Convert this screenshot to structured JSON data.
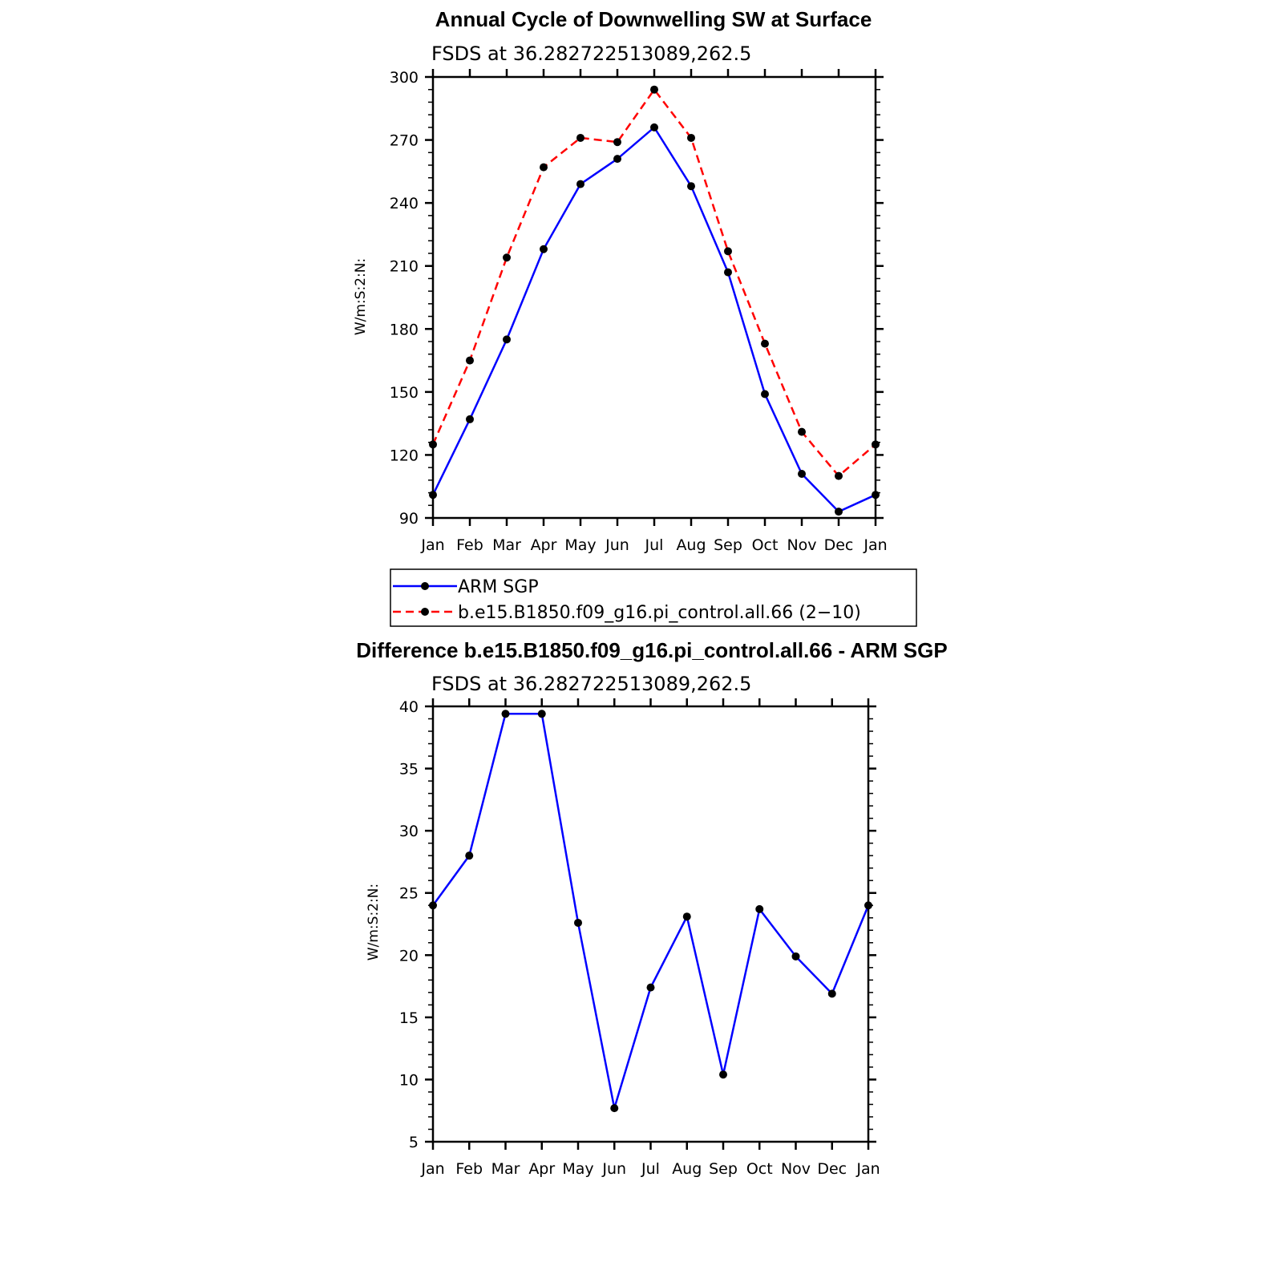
{
  "chart_data": [
    {
      "type": "line",
      "title": "Annual Cycle of Downwelling SW at Surface",
      "subtitle": "FSDS at 36.282722513089,262.5",
      "ylabel": "W/m:S:2:N:",
      "xlabel": "",
      "categories": [
        "Jan",
        "Feb",
        "Mar",
        "Apr",
        "May",
        "Jun",
        "Jul",
        "Aug",
        "Sep",
        "Oct",
        "Nov",
        "Dec",
        "Jan"
      ],
      "ylim": [
        90,
        300
      ],
      "yticks": [
        "90",
        "120",
        "150",
        "180",
        "210",
        "240",
        "270",
        "300"
      ],
      "series": [
        {
          "name": "ARM SGP",
          "color": "#0000ff",
          "dash": "solid",
          "values": [
            101,
            137,
            175,
            218,
            249,
            261,
            276,
            248,
            207,
            149,
            111,
            93,
            101
          ]
        },
        {
          "name": "b.e15.B1850.f09_g16.pi_control.all.66 (2−10)",
          "color": "#ff0000",
          "dash": "dashed",
          "values": [
            125,
            165,
            214,
            257,
            271,
            269,
            294,
            271,
            217,
            173,
            131,
            110,
            125
          ]
        }
      ],
      "legend": "below"
    },
    {
      "type": "line",
      "title": "Difference b.e15.B1850.f09_g16.pi_control.all.66 - ARM SGP",
      "subtitle": "FSDS at 36.282722513089,262.5",
      "ylabel": "W/m:S:2:N:",
      "xlabel": "",
      "categories": [
        "Jan",
        "Feb",
        "Mar",
        "Apr",
        "May",
        "Jun",
        "Jul",
        "Aug",
        "Sep",
        "Oct",
        "Nov",
        "Dec",
        "Jan"
      ],
      "ylim": [
        5,
        40
      ],
      "yticks": [
        "5",
        "10",
        "15",
        "20",
        "25",
        "30",
        "35",
        "40"
      ],
      "series": [
        {
          "name": "Difference",
          "color": "#0000ff",
          "dash": "solid",
          "values": [
            24,
            28,
            39.4,
            39.4,
            22.6,
            7.7,
            17.4,
            23.1,
            10.4,
            23.7,
            19.9,
            16.9,
            24
          ]
        }
      ]
    }
  ]
}
